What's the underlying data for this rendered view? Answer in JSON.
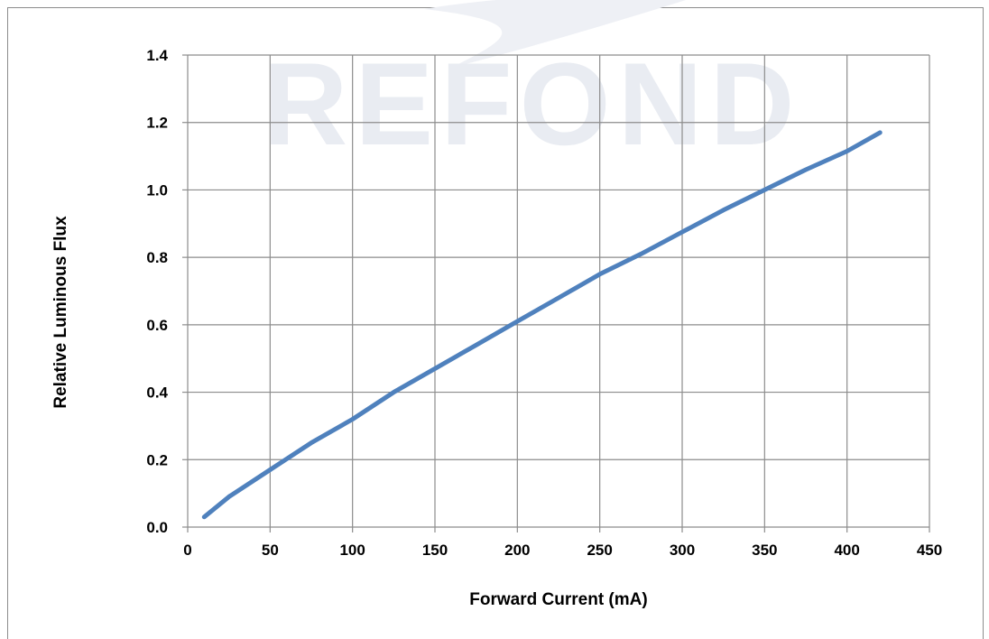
{
  "watermark": {
    "text": "REFOND"
  },
  "chart_data": {
    "type": "line",
    "title": "",
    "xlabel": "Forward Current (mA)",
    "ylabel": "Relative Luminous Flux",
    "xlim": [
      0,
      450
    ],
    "ylim": [
      0,
      1.4
    ],
    "x_ticks": [
      "0",
      "50",
      "100",
      "150",
      "200",
      "250",
      "300",
      "350",
      "400",
      "450"
    ],
    "y_ticks": [
      "0.0",
      "0.2",
      "0.4",
      "0.6",
      "0.8",
      "1.0",
      "1.2",
      "1.4"
    ],
    "grid": true,
    "series": [
      {
        "color": "#4f81bd",
        "x": [
          10,
          25,
          50,
          75,
          100,
          125,
          150,
          175,
          200,
          225,
          250,
          275,
          300,
          325,
          350,
          375,
          400,
          420
        ],
        "y": [
          0.03,
          0.09,
          0.17,
          0.25,
          0.32,
          0.4,
          0.47,
          0.54,
          0.61,
          0.68,
          0.75,
          0.81,
          0.875,
          0.94,
          1.0,
          1.06,
          1.115,
          1.17
        ]
      }
    ]
  }
}
